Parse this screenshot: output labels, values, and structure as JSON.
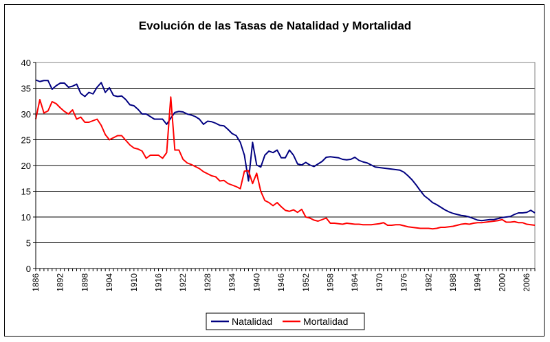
{
  "chart_data": {
    "type": "line",
    "title": "Evolución de las Tasas de Natalidad y Mortalidad",
    "xlabel": "",
    "ylabel": "",
    "xlim": [
      1886,
      2008
    ],
    "ylim": [
      0,
      40
    ],
    "y_ticks": [
      "0",
      "5",
      "10",
      "15",
      "20",
      "25",
      "30",
      "35",
      "40"
    ],
    "x_ticks": [
      "1886",
      "1892",
      "1898",
      "1904",
      "1910",
      "1916",
      "1922",
      "1928",
      "1934",
      "1940",
      "1946",
      "1952",
      "1958",
      "1964",
      "1970",
      "1976",
      "1982",
      "1988",
      "1994",
      "2000",
      "2006"
    ],
    "grid": "horizontal",
    "legend_position": "bottom",
    "series": [
      {
        "name": "Natalidad",
        "color": "#000080",
        "x": [
          1886,
          1887,
          1888,
          1889,
          1890,
          1891,
          1892,
          1893,
          1894,
          1895,
          1896,
          1897,
          1898,
          1899,
          1900,
          1901,
          1902,
          1903,
          1904,
          1905,
          1906,
          1907,
          1908,
          1909,
          1910,
          1911,
          1912,
          1913,
          1914,
          1915,
          1916,
          1917,
          1918,
          1919,
          1920,
          1921,
          1922,
          1923,
          1924,
          1925,
          1926,
          1927,
          1928,
          1929,
          1930,
          1931,
          1932,
          1933,
          1934,
          1935,
          1936,
          1937,
          1938,
          1939,
          1940,
          1941,
          1942,
          1943,
          1944,
          1945,
          1946,
          1947,
          1948,
          1949,
          1950,
          1951,
          1952,
          1953,
          1954,
          1955,
          1956,
          1957,
          1958,
          1959,
          1960,
          1961,
          1962,
          1963,
          1964,
          1965,
          1966,
          1967,
          1968,
          1969,
          1970,
          1971,
          1972,
          1973,
          1974,
          1975,
          1976,
          1977,
          1978,
          1979,
          1980,
          1981,
          1982,
          1983,
          1984,
          1985,
          1986,
          1987,
          1988,
          1989,
          1990,
          1991,
          1992,
          1993,
          1994,
          1995,
          1996,
          1997,
          1998,
          1999,
          2000,
          2001,
          2002,
          2003,
          2004,
          2005,
          2006,
          2007,
          2008
        ],
        "values": [
          36.6,
          36.3,
          36.5,
          36.5,
          34.8,
          35.5,
          36.0,
          36.0,
          35.2,
          35.4,
          35.8,
          34.0,
          33.4,
          34.2,
          33.9,
          35.2,
          36.1,
          34.2,
          35.1,
          33.6,
          33.4,
          33.5,
          32.8,
          31.8,
          31.6,
          30.9,
          30.0,
          30.0,
          29.5,
          29.0,
          29.0,
          29.0,
          28.0,
          29.2,
          30.3,
          30.5,
          30.4,
          30.0,
          29.8,
          29.5,
          29.0,
          28.0,
          28.6,
          28.5,
          28.2,
          27.8,
          27.7,
          27.0,
          26.2,
          25.8,
          24.5,
          22.0,
          17.0,
          24.5,
          20.1,
          19.7,
          22.0,
          22.8,
          22.5,
          23.0,
          21.5,
          21.5,
          23.0,
          22.0,
          20.3,
          20.1,
          20.6,
          20.1,
          19.8,
          20.3,
          20.8,
          21.6,
          21.7,
          21.6,
          21.5,
          21.2,
          21.1,
          21.2,
          21.6,
          21.0,
          20.7,
          20.5,
          20.1,
          19.7,
          19.6,
          19.5,
          19.4,
          19.3,
          19.2,
          19.1,
          18.7,
          18.0,
          17.2,
          16.2,
          15.1,
          14.1,
          13.5,
          12.8,
          12.4,
          11.9,
          11.4,
          11.0,
          10.7,
          10.5,
          10.3,
          10.2,
          10.0,
          9.7,
          9.4,
          9.3,
          9.4,
          9.5,
          9.5,
          9.7,
          9.9,
          10.0,
          10.1,
          10.5,
          10.8,
          10.8,
          10.9,
          11.3,
          10.8
        ]
      },
      {
        "name": "Mortalidad",
        "color": "#ff0000",
        "x": [
          1886,
          1887,
          1888,
          1889,
          1890,
          1891,
          1892,
          1893,
          1894,
          1895,
          1896,
          1897,
          1898,
          1899,
          1900,
          1901,
          1902,
          1903,
          1904,
          1905,
          1906,
          1907,
          1908,
          1909,
          1910,
          1911,
          1912,
          1913,
          1914,
          1915,
          1916,
          1917,
          1918,
          1919,
          1920,
          1921,
          1922,
          1923,
          1924,
          1925,
          1926,
          1927,
          1928,
          1929,
          1930,
          1931,
          1932,
          1933,
          1934,
          1935,
          1936,
          1937,
          1938,
          1939,
          1940,
          1941,
          1942,
          1943,
          1944,
          1945,
          1946,
          1947,
          1948,
          1949,
          1950,
          1951,
          1952,
          1953,
          1954,
          1955,
          1956,
          1957,
          1958,
          1959,
          1960,
          1961,
          1962,
          1963,
          1964,
          1965,
          1966,
          1967,
          1968,
          1969,
          1970,
          1971,
          1972,
          1973,
          1974,
          1975,
          1976,
          1977,
          1978,
          1979,
          1980,
          1981,
          1982,
          1983,
          1984,
          1985,
          1986,
          1987,
          1988,
          1989,
          1990,
          1991,
          1992,
          1993,
          1994,
          1995,
          1996,
          1997,
          1998,
          1999,
          2000,
          2001,
          2002,
          2003,
          2004,
          2005,
          2006,
          2007,
          2008
        ],
        "values": [
          29.0,
          32.8,
          30.2,
          30.6,
          32.4,
          32.0,
          31.2,
          30.5,
          30.0,
          30.8,
          29.0,
          29.4,
          28.4,
          28.4,
          28.7,
          29.0,
          27.8,
          26.0,
          25.0,
          25.4,
          25.8,
          25.8,
          24.9,
          24.0,
          23.4,
          23.2,
          22.8,
          21.4,
          22.0,
          22.0,
          22.0,
          21.4,
          22.5,
          33.3,
          23.0,
          23.0,
          21.2,
          20.5,
          20.2,
          19.8,
          19.4,
          18.8,
          18.4,
          18.0,
          17.8,
          17.0,
          17.1,
          16.5,
          16.2,
          15.9,
          15.5,
          18.9,
          19.0,
          16.5,
          18.5,
          15.0,
          13.2,
          12.8,
          12.2,
          12.8,
          12.0,
          11.3,
          11.1,
          11.4,
          10.9,
          11.5,
          10.0,
          9.8,
          9.4,
          9.2,
          9.5,
          9.8,
          8.8,
          8.8,
          8.7,
          8.6,
          8.8,
          8.7,
          8.6,
          8.6,
          8.5,
          8.5,
          8.5,
          8.6,
          8.7,
          8.9,
          8.4,
          8.4,
          8.5,
          8.5,
          8.3,
          8.1,
          8.0,
          7.9,
          7.8,
          7.8,
          7.8,
          7.7,
          7.8,
          8.0,
          8.0,
          8.1,
          8.2,
          8.4,
          8.6,
          8.7,
          8.6,
          8.8,
          8.9,
          8.9,
          9.0,
          9.1,
          9.2,
          9.3,
          9.5,
          9.0,
          9.0,
          9.1,
          8.9,
          8.9,
          8.6,
          8.5,
          8.4
        ]
      }
    ]
  }
}
